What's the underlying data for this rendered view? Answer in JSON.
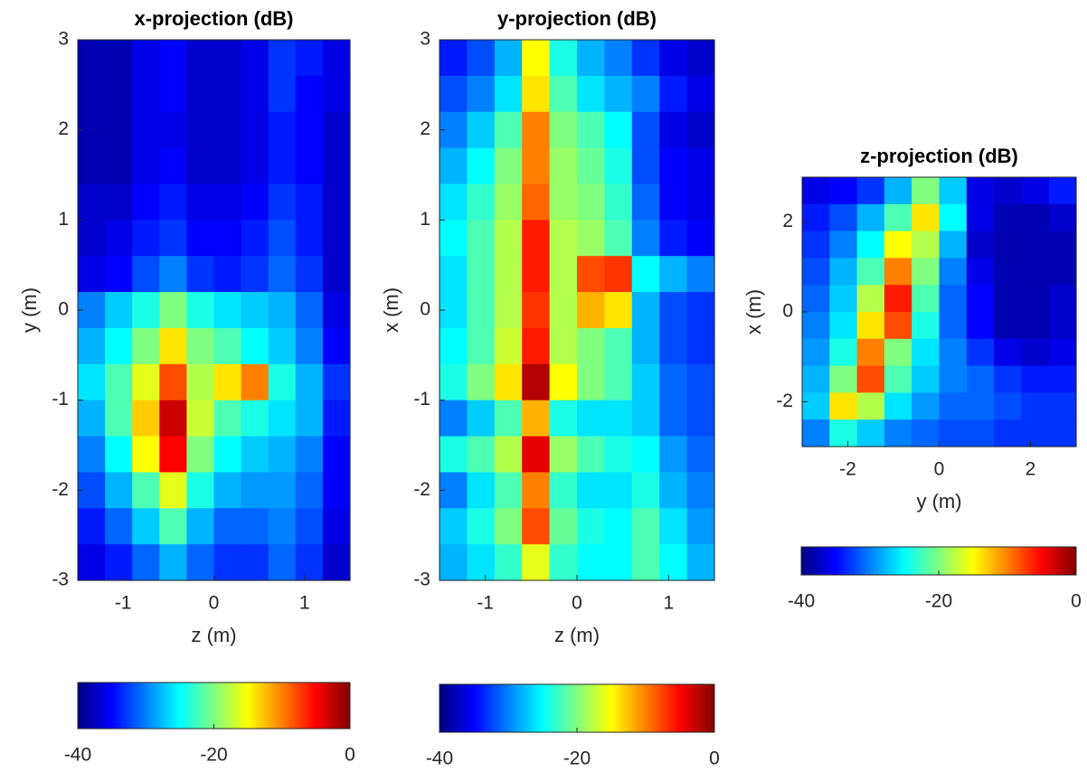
{
  "chart_data": [
    {
      "type": "heatmap",
      "title": "x-projection (dB)",
      "xlabel": "z (m)",
      "ylabel": "y (m)",
      "xlim": [
        -1.5,
        1.5
      ],
      "ylim": [
        -3,
        3
      ],
      "xticks": [
        -1,
        0,
        1
      ],
      "yticks": [
        -3,
        -2,
        -1,
        0,
        1,
        2,
        3
      ],
      "colormap": "jet",
      "clim": [
        -40,
        0
      ],
      "cticks": [
        -40,
        -20,
        0
      ],
      "z": [
        [
          -38,
          -38,
          -36,
          -35,
          -37,
          -37,
          -36,
          -33,
          -34,
          -36
        ],
        [
          -38,
          -38,
          -36,
          -35,
          -37,
          -37,
          -36,
          -33,
          -35,
          -36
        ],
        [
          -38,
          -38,
          -36,
          -36,
          -37,
          -37,
          -36,
          -34,
          -35,
          -37
        ],
        [
          -38,
          -38,
          -36,
          -35,
          -37,
          -37,
          -36,
          -34,
          -35,
          -37
        ],
        [
          -37,
          -37,
          -35,
          -34,
          -36,
          -36,
          -35,
          -33,
          -34,
          -37
        ],
        [
          -37,
          -36,
          -34,
          -33,
          -35,
          -35,
          -34,
          -32,
          -34,
          -37
        ],
        [
          -36,
          -35,
          -32,
          -30,
          -33,
          -34,
          -33,
          -31,
          -33,
          -37
        ],
        [
          -30,
          -27,
          -24,
          -20,
          -24,
          -26,
          -27,
          -28,
          -31,
          -36
        ],
        [
          -28,
          -25,
          -20,
          -14,
          -20,
          -22,
          -25,
          -27,
          -30,
          -35
        ],
        [
          -26,
          -22,
          -16,
          -8,
          -18,
          -14,
          -10,
          -24,
          -28,
          -33
        ],
        [
          -28,
          -22,
          -13,
          -3,
          -17,
          -22,
          -24,
          -26,
          -28,
          -34
        ],
        [
          -30,
          -25,
          -15,
          -5,
          -20,
          -25,
          -27,
          -28,
          -30,
          -35
        ],
        [
          -32,
          -28,
          -22,
          -16,
          -24,
          -28,
          -29,
          -29,
          -31,
          -35
        ],
        [
          -34,
          -31,
          -27,
          -22,
          -28,
          -31,
          -31,
          -30,
          -32,
          -36
        ],
        [
          -36,
          -34,
          -31,
          -28,
          -31,
          -33,
          -33,
          -31,
          -33,
          -37
        ]
      ]
    },
    {
      "type": "heatmap",
      "title": "y-projection (dB)",
      "xlabel": "z (m)",
      "ylabel": "x (m)",
      "xlim": [
        -1.5,
        1.5
      ],
      "ylim": [
        -3,
        3
      ],
      "xticks": [
        -1,
        0,
        1
      ],
      "yticks": [
        -3,
        -2,
        -1,
        0,
        1,
        2,
        3
      ],
      "colormap": "jet",
      "clim": [
        -40,
        0
      ],
      "cticks": [
        -40,
        -20,
        0
      ],
      "z": [
        [
          -34,
          -32,
          -28,
          -15,
          -24,
          -28,
          -30,
          -33,
          -36,
          -37
        ],
        [
          -32,
          -30,
          -26,
          -14,
          -22,
          -26,
          -28,
          -30,
          -34,
          -36
        ],
        [
          -30,
          -27,
          -22,
          -10,
          -20,
          -22,
          -25,
          -32,
          -36,
          -37
        ],
        [
          -28,
          -25,
          -20,
          -10,
          -19,
          -21,
          -24,
          -32,
          -35,
          -36
        ],
        [
          -26,
          -23,
          -19,
          -9,
          -19,
          -20,
          -23,
          -31,
          -35,
          -36
        ],
        [
          -25,
          -22,
          -18,
          -6,
          -18,
          -19,
          -22,
          -30,
          -34,
          -35
        ],
        [
          -26,
          -22,
          -18,
          -6,
          -18,
          -8,
          -7,
          -25,
          -28,
          -30
        ],
        [
          -26,
          -22,
          -18,
          -7,
          -18,
          -12,
          -14,
          -28,
          -32,
          -33
        ],
        [
          -25,
          -22,
          -17,
          -6,
          -18,
          -20,
          -22,
          -28,
          -32,
          -33
        ],
        [
          -24,
          -20,
          -14,
          -2,
          -15,
          -20,
          -22,
          -27,
          -31,
          -32
        ],
        [
          -30,
          -27,
          -22,
          -12,
          -24,
          -26,
          -26,
          -27,
          -31,
          -32
        ],
        [
          -24,
          -22,
          -18,
          -4,
          -19,
          -22,
          -24,
          -25,
          -29,
          -31
        ],
        [
          -30,
          -26,
          -22,
          -10,
          -23,
          -26,
          -26,
          -24,
          -28,
          -30
        ],
        [
          -27,
          -24,
          -20,
          -8,
          -21,
          -24,
          -25,
          -22,
          -26,
          -29
        ],
        [
          -28,
          -26,
          -23,
          -16,
          -23,
          -25,
          -25,
          -22,
          -25,
          -28
        ]
      ]
    },
    {
      "type": "heatmap",
      "title": "z-projection (dB)",
      "xlabel": "y (m)",
      "ylabel": "x (m)",
      "xlim": [
        -3,
        3
      ],
      "ylim": [
        -3,
        3
      ],
      "xticks": [
        -2,
        0,
        2
      ],
      "yticks": [
        -2,
        0,
        2
      ],
      "colormap": "jet",
      "clim": [
        -40,
        0
      ],
      "cticks": [
        -40,
        -20,
        0
      ],
      "z": [
        [
          -36,
          -35,
          -33,
          -28,
          -20,
          -27,
          -36,
          -37,
          -36,
          -34
        ],
        [
          -34,
          -32,
          -28,
          -22,
          -14,
          -25,
          -36,
          -38,
          -38,
          -37
        ],
        [
          -33,
          -30,
          -25,
          -15,
          -18,
          -28,
          -37,
          -38,
          -38,
          -38
        ],
        [
          -32,
          -28,
          -22,
          -10,
          -20,
          -30,
          -36,
          -38,
          -38,
          -38
        ],
        [
          -31,
          -27,
          -18,
          -6,
          -22,
          -31,
          -35,
          -38,
          -38,
          -37
        ],
        [
          -30,
          -26,
          -14,
          -8,
          -24,
          -31,
          -35,
          -38,
          -38,
          -37
        ],
        [
          -29,
          -24,
          -10,
          -20,
          -26,
          -30,
          -33,
          -36,
          -37,
          -36
        ],
        [
          -28,
          -20,
          -8,
          -22,
          -27,
          -30,
          -31,
          -33,
          -34,
          -34
        ],
        [
          -27,
          -14,
          -18,
          -26,
          -29,
          -31,
          -31,
          -32,
          -33,
          -33
        ],
        [
          -30,
          -24,
          -27,
          -30,
          -31,
          -32,
          -32,
          -33,
          -33,
          -33
        ]
      ]
    }
  ]
}
